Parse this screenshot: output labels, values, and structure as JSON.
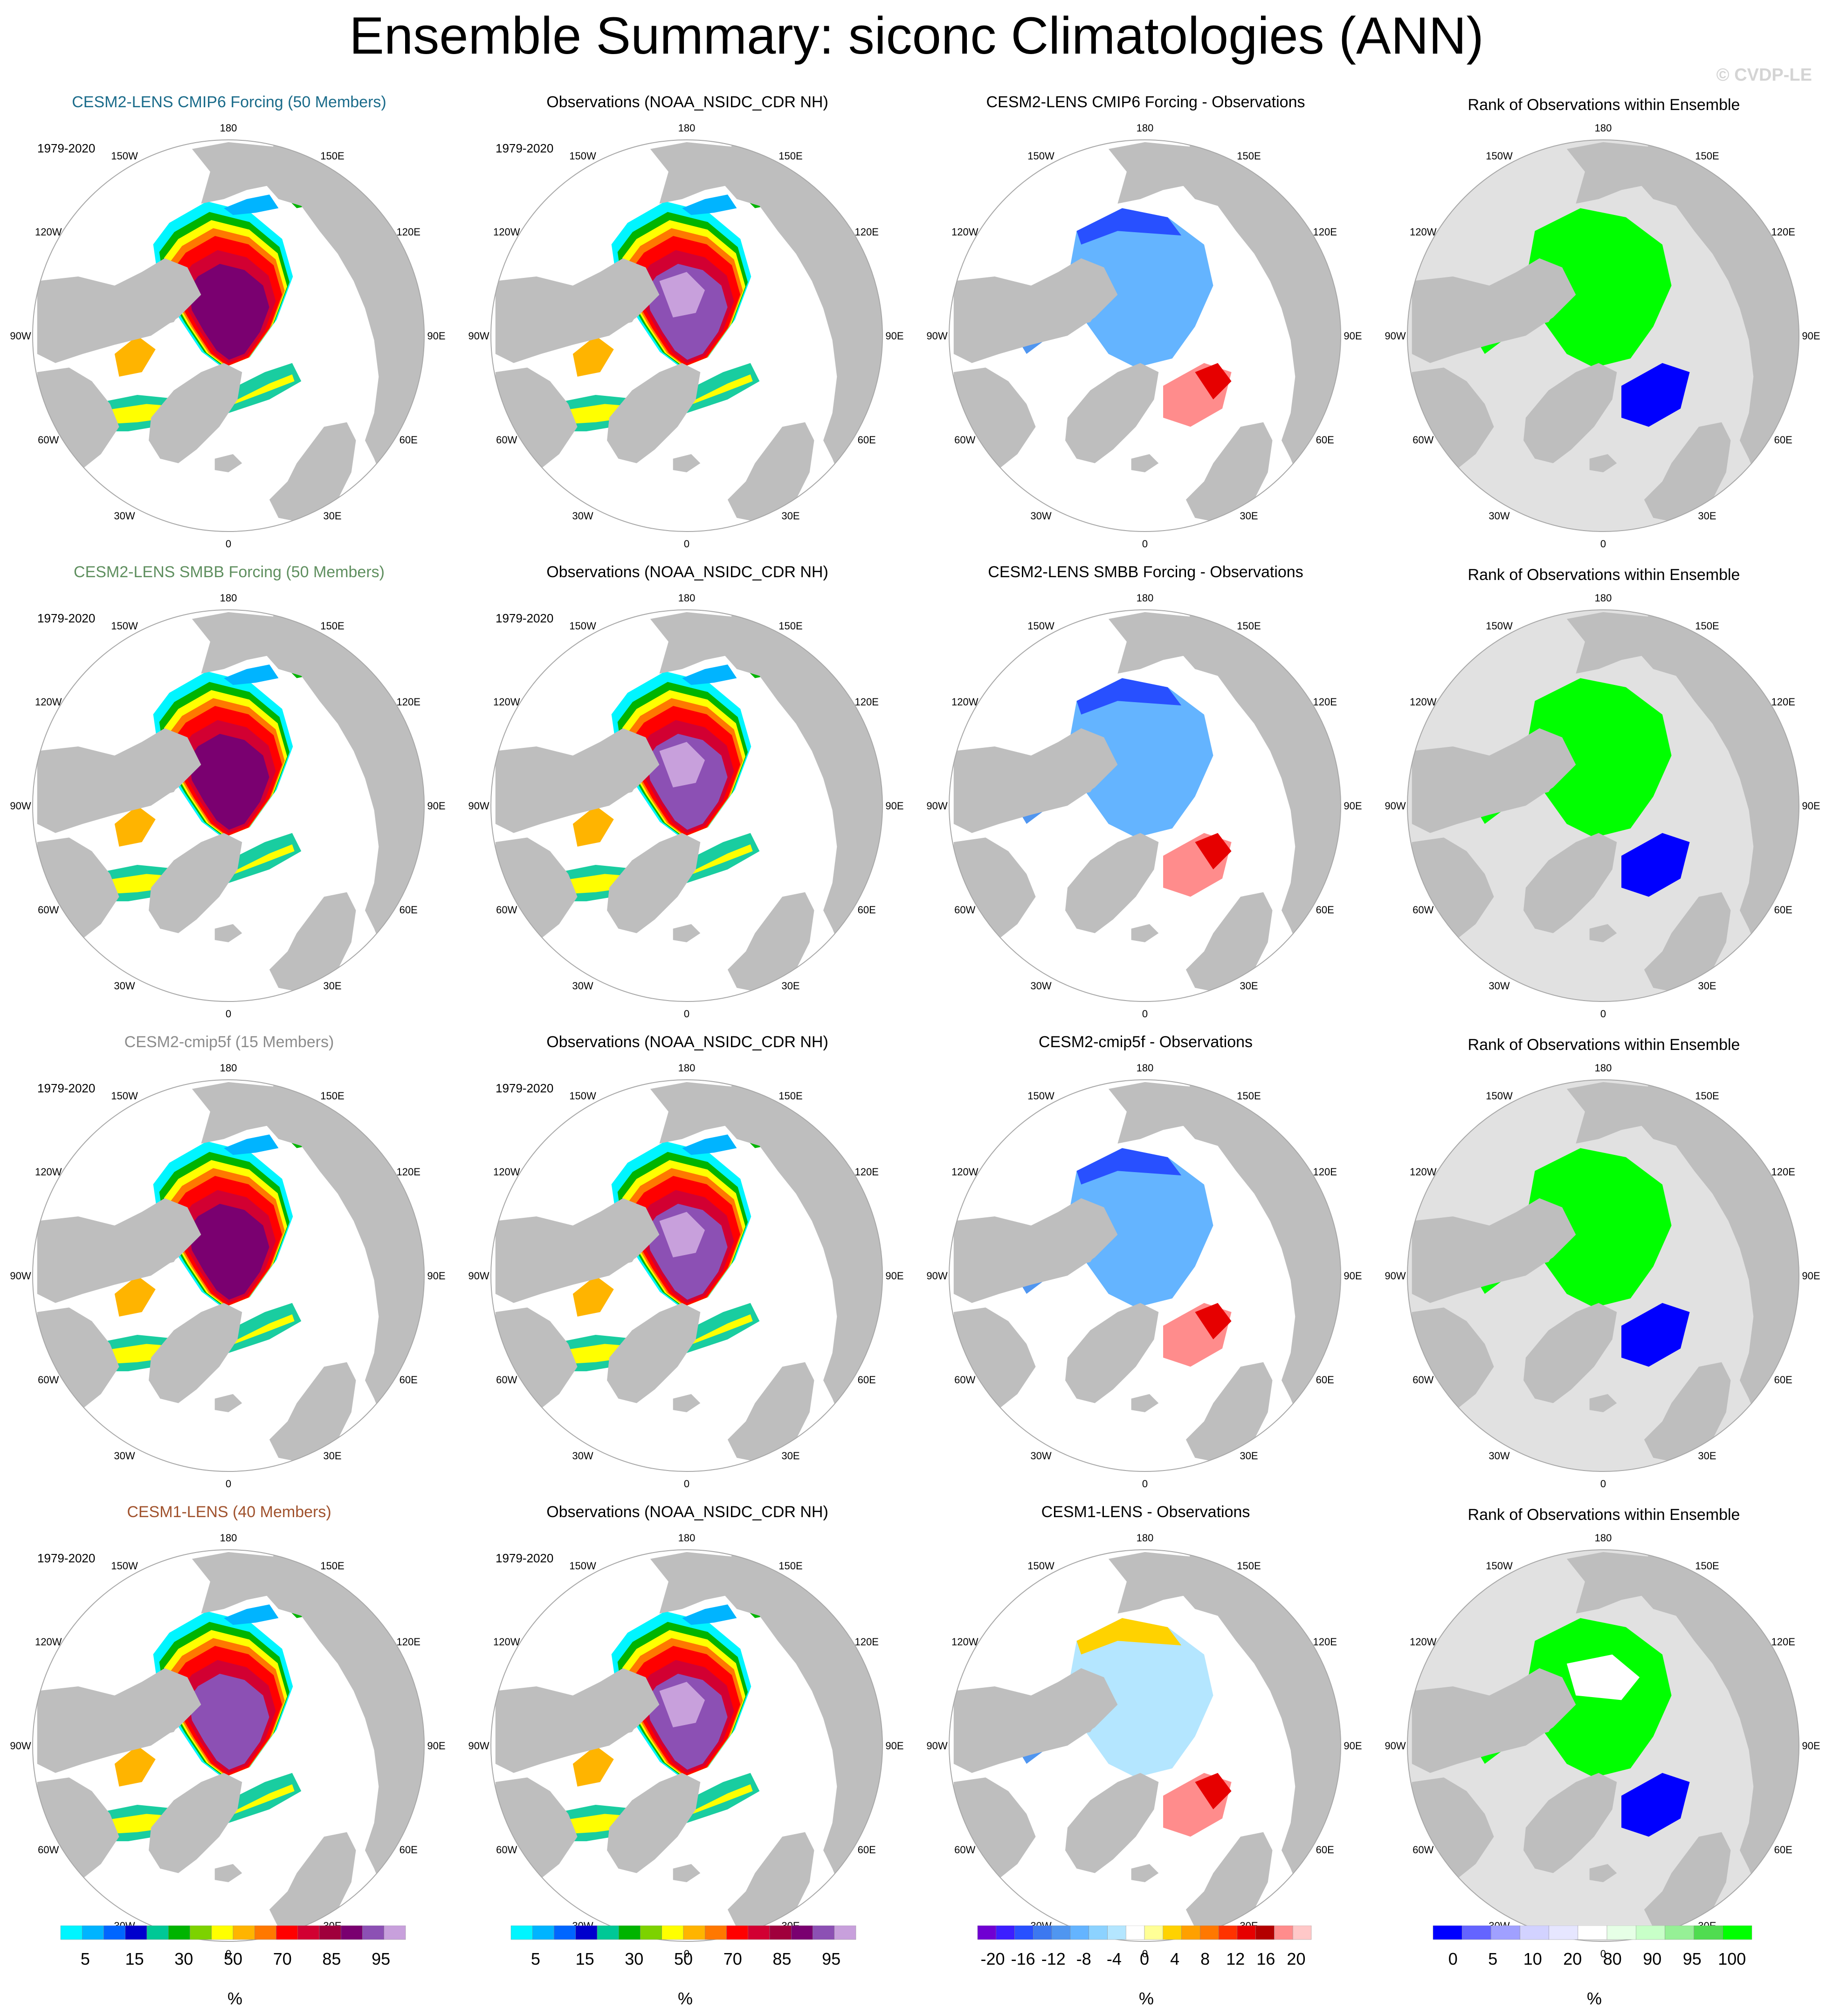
{
  "page": {
    "title": "Ensemble Summary: siconc Climatologies (ANN)",
    "watermark": "© CVDP-LE"
  },
  "rows": [
    {
      "model_title": "CESM2-LENS CMIP6 Forcing (50 Members)",
      "model_color": "#1a6b8a",
      "obs_title": "Observations (NOAA_NSIDC_CDR NH)",
      "diff_title": "CESM2-LENS CMIP6 Forcing - Observations",
      "rank_title": "Rank of Observations within Ensemble",
      "period": "1979-2020",
      "variant": 0
    },
    {
      "model_title": "CESM2-LENS SMBB Forcing (50 Members)",
      "model_color": "#5f8f5f",
      "obs_title": "Observations (NOAA_NSIDC_CDR NH)",
      "diff_title": "CESM2-LENS SMBB Forcing - Observations",
      "rank_title": "Rank of Observations within Ensemble",
      "period": "1979-2020",
      "variant": 1
    },
    {
      "model_title": "CESM2-cmip5f (15 Members)",
      "model_color": "#8c8c8c",
      "obs_title": "Observations (NOAA_NSIDC_CDR NH)",
      "diff_title": "CESM2-cmip5f - Observations",
      "rank_title": "Rank of Observations within Ensemble",
      "period": "1979-2020",
      "variant": 2
    },
    {
      "model_title": "CESM1-LENS (40 Members)",
      "model_color": "#a0522d",
      "obs_title": "Observations (NOAA_NSIDC_CDR NH)",
      "diff_title": "CESM1-LENS - Observations",
      "rank_title": "Rank of Observations within Ensemble",
      "period": "1979-2020",
      "variant": 3
    }
  ],
  "longitude_labels": [
    "180",
    "150E",
    "120E",
    "90E",
    "60E",
    "30E",
    "0",
    "30W",
    "60W",
    "90W",
    "120W",
    "150W"
  ],
  "colorbars": {
    "siconc": {
      "colors": [
        "#00f5ff",
        "#00b4ff",
        "#0066ff",
        "#0000cd",
        "#00c896",
        "#00b400",
        "#7dd200",
        "#ffff00",
        "#ffb400",
        "#ff7800",
        "#ff0000",
        "#d20032",
        "#a0003c",
        "#7a0070",
        "#8c50b4",
        "#c8a0dc"
      ],
      "labels": [
        "5",
        "15",
        "30",
        "50",
        "70",
        "85",
        "95"
      ],
      "unit": "%"
    },
    "diff": {
      "colors": [
        "#7000d2",
        "#3c1eff",
        "#2850ff",
        "#3c78f0",
        "#5096f0",
        "#64b4ff",
        "#8cd2ff",
        "#b4e6ff",
        "#ffffff",
        "#ffff96",
        "#ffd200",
        "#ffa000",
        "#ff7800",
        "#ff3200",
        "#e60000",
        "#b40000",
        "#ff8c8c",
        "#ffc8c8"
      ],
      "labels": [
        "-20",
        "-16",
        "-12",
        "-8",
        "-4",
        "0",
        "4",
        "8",
        "12",
        "16",
        "20"
      ],
      "unit": "%"
    },
    "rank": {
      "colors": [
        "#0000ff",
        "#6464ff",
        "#a0a0ff",
        "#d2d2ff",
        "#e6e6ff",
        "#ffffff",
        "#e6ffe6",
        "#c8ffc8",
        "#96f096",
        "#50dc50",
        "#00ff00"
      ],
      "labels": [
        "0",
        "5",
        "10",
        "20",
        "80",
        "90",
        "95",
        "100"
      ],
      "unit": "%"
    }
  },
  "colors": {
    "land": "#bebebe",
    "ocean": "#ffffff",
    "rank_background": "#e1e1e1",
    "border": "#a8a8a8",
    "title_black": "#000000"
  }
}
